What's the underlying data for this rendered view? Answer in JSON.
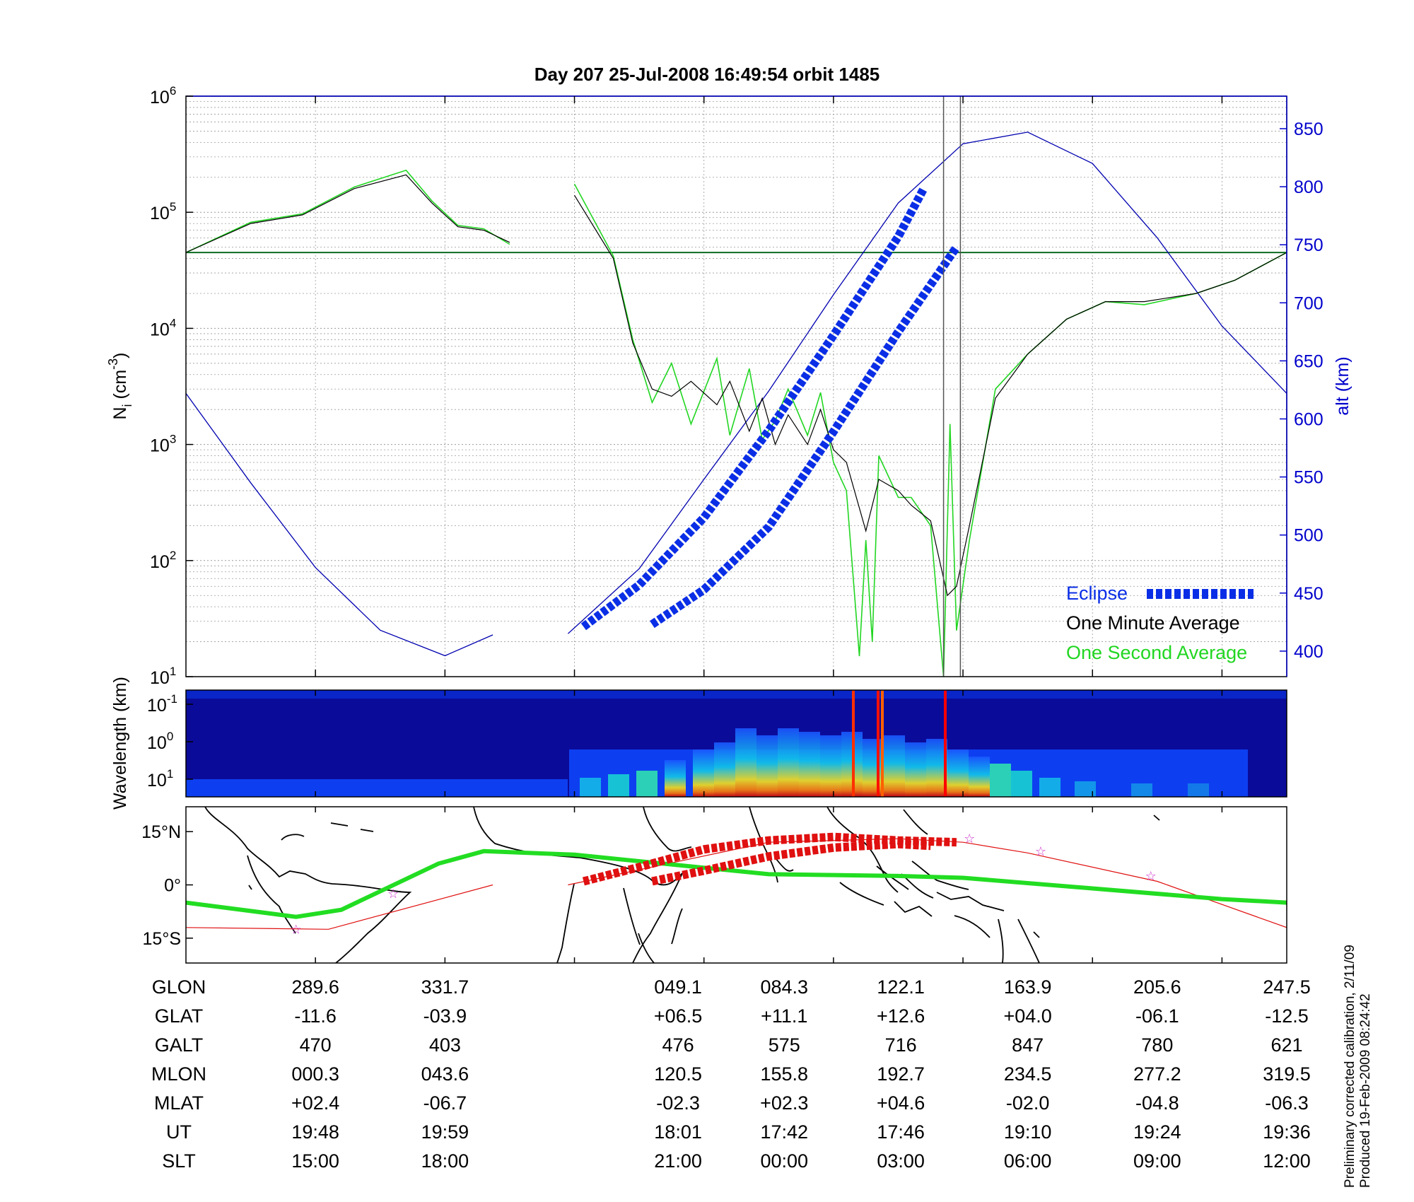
{
  "title": "Day 207  25-Jul-2008 16:49:54   orbit 1485",
  "colors": {
    "eclipse": "#0a2ee6",
    "minute_avg": "#000000",
    "second_avg": "#22d622",
    "altitude": "#0000b0",
    "orbit_track": "#22dd22",
    "track_red": "#e01010",
    "stars": "#cc33cc"
  },
  "chart_data": [
    {
      "type": "line",
      "panel": "density",
      "ylabel_left": "N_i (cm^-3)",
      "ylabel_right": "alt (km)",
      "yscale_left": "log",
      "ylim_left": [
        10,
        1000000
      ],
      "ylim_right": [
        378,
        878
      ],
      "y_ticks_left": [
        {
          "base": "10",
          "exp": "1"
        },
        {
          "base": "10",
          "exp": "2"
        },
        {
          "base": "10",
          "exp": "3"
        },
        {
          "base": "10",
          "exp": "4"
        },
        {
          "base": "10",
          "exp": "5"
        },
        {
          "base": "10",
          "exp": "6"
        }
      ],
      "y_ticks_right": [
        "400",
        "450",
        "500",
        "550",
        "600",
        "650",
        "700",
        "750",
        "800",
        "850"
      ],
      "grid": true,
      "legend_position": "bottom-right",
      "legend": [
        "Eclipse",
        "One Minute Average",
        "One Second Average"
      ],
      "x_domain": [
        0,
        8.5
      ],
      "reference_level": 45000,
      "marker_lines_x": [
        5.85,
        5.98
      ],
      "one_minute_average": {
        "x": [
          0,
          0.5,
          0.9,
          1.3,
          1.7,
          1.9,
          2.1,
          2.3,
          2.5,
          2.8,
          3.0,
          3.3,
          3.45,
          3.6,
          3.75,
          3.9,
          4.1,
          4.2,
          4.35,
          4.45,
          4.55,
          4.65,
          4.8,
          4.9,
          5.0,
          5.1,
          5.25,
          5.35,
          5.5,
          5.6,
          5.75,
          5.88,
          5.95,
          6.05,
          6.25,
          6.5,
          6.8,
          7.1,
          7.4,
          7.8,
          8.1,
          8.5
        ],
        "y": [
          45000,
          80000,
          95000,
          160000,
          210000,
          120000,
          75000,
          70000,
          55000,
          null,
          140000,
          40000,
          7500,
          3000,
          2600,
          3500,
          2200,
          3500,
          1300,
          2500,
          1000,
          1800,
          1000,
          2000,
          900,
          700,
          180,
          500,
          400,
          300,
          220,
          50,
          60,
          200,
          2500,
          6000,
          12000,
          17000,
          17000,
          20000,
          26000,
          45000
        ]
      },
      "one_second_average": {
        "x": [
          0,
          0.5,
          0.9,
          1.3,
          1.7,
          1.9,
          2.1,
          2.3,
          2.5,
          2.8,
          3.0,
          3.3,
          3.45,
          3.6,
          3.75,
          3.9,
          4.1,
          4.2,
          4.35,
          4.45,
          4.55,
          4.65,
          4.8,
          4.9,
          5.0,
          5.1,
          5.2,
          5.25,
          5.3,
          5.35,
          5.5,
          5.6,
          5.75,
          5.85,
          5.9,
          5.95,
          6.05,
          6.25,
          6.5,
          6.8,
          7.1,
          7.4,
          7.8,
          8.1,
          8.5
        ],
        "y": [
          45000,
          82000,
          97000,
          165000,
          230000,
          125000,
          77000,
          72000,
          53000,
          null,
          175000,
          42000,
          8000,
          2300,
          5000,
          1500,
          5500,
          1200,
          4500,
          1100,
          1600,
          3000,
          1200,
          2800,
          700,
          400,
          15,
          150,
          20,
          800,
          350,
          350,
          200,
          10,
          1500,
          25,
          150,
          3000,
          6000,
          12000,
          17000,
          16000,
          20000,
          26000,
          45000
        ]
      },
      "altitude": {
        "x": [
          0,
          0.5,
          1,
          1.5,
          2.0,
          2.37,
          null,
          2.95,
          3.5,
          4,
          4.5,
          5,
          5.5,
          6,
          6.5,
          7,
          7.5,
          8,
          8.5
        ],
        "y": [
          622,
          545,
          472,
          418,
          396,
          414,
          null,
          415,
          471,
          548,
          624,
          707,
          786,
          837,
          847,
          820,
          756,
          680,
          622
        ]
      },
      "eclipse_segments": [
        {
          "x": [
            3.07,
            3.5,
            4.0,
            4.5,
            5.0,
            5.5,
            5.7
          ],
          "y": [
            421,
            457,
            515,
            590,
            672,
            757,
            799
          ]
        },
        {
          "x": [
            3.6,
            4.0,
            4.5,
            5.0,
            5.5,
            5.95
          ],
          "y": [
            423,
            453,
            507,
            589,
            675,
            748
          ]
        }
      ]
    },
    {
      "type": "heatmap",
      "panel": "spectrogram",
      "ylabel": "Wavelength (km)",
      "y_ticks": [
        {
          "base": "10",
          "exp": "-1"
        },
        {
          "base": "10",
          "exp": "0"
        },
        {
          "base": "10",
          "exp": "1"
        }
      ]
    },
    {
      "type": "map",
      "panel": "ground-track",
      "y_ticks": [
        "15°N",
        "0°",
        "15°S"
      ],
      "lat_range": [
        -22,
        22
      ],
      "orbit_track": {
        "x": [
          0,
          0.85,
          1.2,
          1.95,
          2.3,
          3.0,
          4.5,
          5.5,
          6.0,
          7.0,
          8.0,
          8.5
        ],
        "lat": [
          -5,
          -9,
          -7,
          6,
          9.5,
          8.5,
          3,
          2.5,
          2,
          -1,
          -4,
          -5
        ]
      },
      "thin_track": {
        "x": [
          0,
          1.1,
          2.37,
          null,
          2.95,
          4.5,
          5.5,
          6.0,
          6.5,
          7.5,
          8.5
        ],
        "lat": [
          -12,
          -12.5,
          0,
          null,
          0,
          12,
          13,
          12,
          9,
          1,
          -12
        ]
      },
      "eclipse_tracks": [
        {
          "x": [
            3.07,
            3.5,
            4.0,
            4.5,
            5.0,
            5.5,
            5.95
          ],
          "lat": [
            1,
            5,
            10,
            12.5,
            13.5,
            12.5,
            12
          ]
        },
        {
          "x": [
            3.6,
            4.0,
            4.5,
            5.0,
            5.5,
            5.75
          ],
          "lat": [
            1,
            4,
            8,
            10.5,
            11.5,
            11
          ]
        }
      ],
      "stars": [
        {
          "x": 0.85,
          "lat": -12.5
        },
        {
          "x": 1.6,
          "lat": -2.5
        },
        {
          "x": 6.05,
          "lat": 13
        },
        {
          "x": 6.6,
          "lat": 9.5
        },
        {
          "x": 7.45,
          "lat": 2.5
        }
      ]
    }
  ],
  "table": {
    "columns_x": [
      1,
      2,
      3.8,
      4.62,
      5.52,
      6.5,
      7.5,
      8.5
    ],
    "rows": [
      {
        "label": "GLON",
        "values": [
          "289.6",
          "331.7",
          "049.1",
          "084.3",
          "122.1",
          "163.9",
          "205.6",
          "247.5"
        ]
      },
      {
        "label": "GLAT",
        "values": [
          "-11.6",
          "-03.9",
          "+06.5",
          "+11.1",
          "+12.6",
          "+04.0",
          "-06.1",
          "-12.5"
        ]
      },
      {
        "label": "GALT",
        "values": [
          "470",
          "403",
          "476",
          "575",
          "716",
          "847",
          "780",
          "621"
        ]
      },
      {
        "label": "MLON",
        "values": [
          "000.3",
          "043.6",
          "120.5",
          "155.8",
          "192.7",
          "234.5",
          "277.2",
          "319.5"
        ]
      },
      {
        "label": "MLAT",
        "values": [
          "+02.4",
          "-06.7",
          "-02.3",
          "+02.3",
          "+04.6",
          "-02.0",
          "-04.8",
          "-06.3"
        ]
      },
      {
        "label": "UT",
        "values": [
          "19:48",
          "19:59",
          "18:01",
          "17:42",
          "17:46",
          "19:10",
          "19:24",
          "19:36"
        ]
      },
      {
        "label": "SLT",
        "values": [
          "15:00",
          "18:00",
          "21:00",
          "00:00",
          "03:00",
          "06:00",
          "09:00",
          "12:00"
        ]
      }
    ]
  },
  "footnotes": {
    "line1": "Preliminary corrected calibration, 2/11/09",
    "line2": "Produced 19-Feb-2009 08:24:42"
  }
}
